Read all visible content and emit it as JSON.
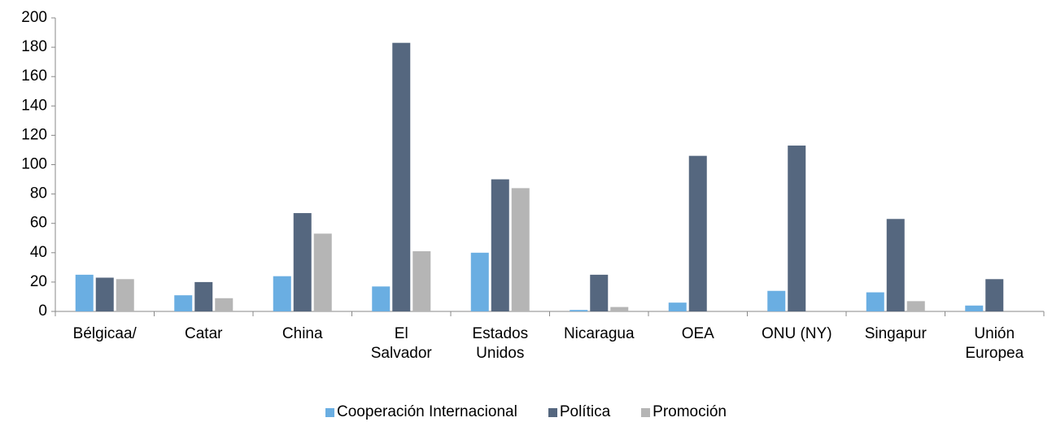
{
  "chart_data": {
    "type": "bar",
    "categories": [
      "Bélgicaa/",
      "Catar",
      "China",
      "El Salvador",
      "Estados Unidos",
      "Nicaragua",
      "OEA",
      "ONU (NY)",
      "Singapur",
      "Unión Europea"
    ],
    "series": [
      {
        "name": "Cooperación Internacional",
        "color": "#6aaee2",
        "values": [
          25,
          11,
          24,
          17,
          40,
          1,
          6,
          14,
          13,
          4
        ]
      },
      {
        "name": "Política",
        "color": "#55677f",
        "values": [
          23,
          20,
          67,
          183,
          90,
          25,
          106,
          113,
          63,
          22
        ]
      },
      {
        "name": "Promoción",
        "color": "#b5b5b5",
        "values": [
          22,
          9,
          53,
          41,
          84,
          3,
          null,
          null,
          7,
          null
        ]
      }
    ],
    "ylim": [
      0,
      200
    ],
    "yticks": [
      0,
      20,
      40,
      60,
      80,
      100,
      120,
      140,
      160,
      180,
      200
    ],
    "grid": false,
    "legend": "bottom"
  }
}
